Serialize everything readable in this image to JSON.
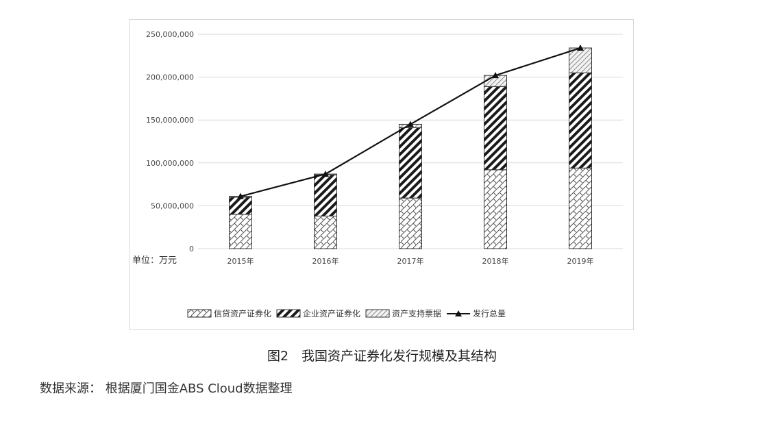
{
  "caption": "图2　我国资产证券化发行规模及其结构",
  "source": "数据来源：  根据厦门国金ABS Cloud数据整理",
  "chart_data": {
    "type": "bar",
    "stacked": true,
    "unit_label": "单位：万元",
    "categories": [
      "2015年",
      "2016年",
      "2017年",
      "2018年",
      "2019年"
    ],
    "ylim": [
      0,
      250000000
    ],
    "yticks": [
      0,
      50000000,
      100000000,
      150000000,
      200000000,
      250000000
    ],
    "ytick_labels": [
      "0",
      "50,000,000",
      "100,000,000",
      "150,000,000",
      "200,000,000",
      "250,000,000"
    ],
    "grid": true,
    "legend_position": "bottom",
    "series": [
      {
        "name": "信贷资产证券化",
        "values": [
          40000000,
          38000000,
          59000000,
          92000000,
          94000000
        ],
        "pattern": "cross-hatch"
      },
      {
        "name": "企业资产证券化",
        "values": [
          20000000,
          48000000,
          82000000,
          97000000,
          111000000
        ],
        "pattern": "dense-diagonal"
      },
      {
        "name": "资产支持票据",
        "values": [
          1000000,
          1000000,
          4000000,
          13000000,
          29000000
        ],
        "pattern": "light-diagonal"
      }
    ],
    "line_series": {
      "name": "发行总量",
      "values": [
        61000000,
        87000000,
        145000000,
        202000000,
        234000000
      ],
      "marker": "triangle",
      "color": "#111111"
    }
  }
}
